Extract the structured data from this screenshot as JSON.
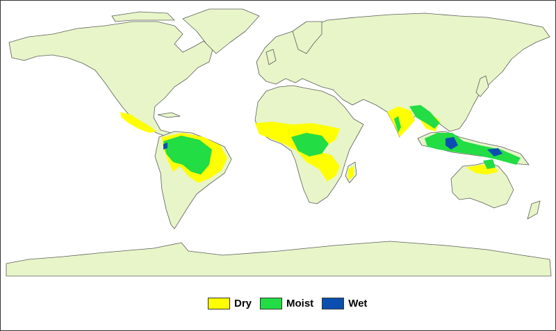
{
  "map": {
    "colors": {
      "ocean": "#ffffff",
      "land": "#e7f5c8",
      "coast": "#5c5c5c",
      "dry": "#ffff00",
      "moist": "#22dd44",
      "wet": "#0a4fb0"
    }
  },
  "legend": {
    "items": [
      {
        "label": "Dry",
        "color": "#ffff00"
      },
      {
        "label": "Moist",
        "color": "#22dd44"
      },
      {
        "label": "Wet",
        "color": "#0a4fb0"
      }
    ]
  }
}
